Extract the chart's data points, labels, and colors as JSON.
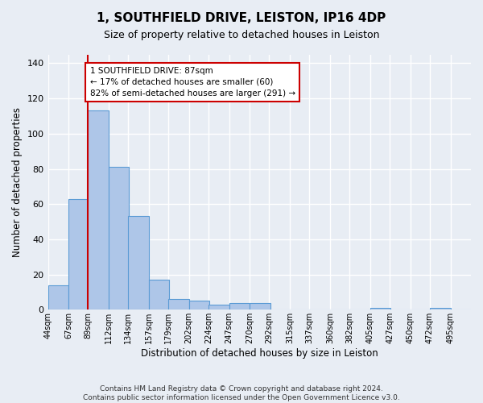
{
  "title": "1, SOUTHFIELD DRIVE, LEISTON, IP16 4DP",
  "subtitle": "Size of property relative to detached houses in Leiston",
  "xlabel": "Distribution of detached houses by size in Leiston",
  "ylabel": "Number of detached properties",
  "bar_labels": [
    "44sqm",
    "67sqm",
    "89sqm",
    "112sqm",
    "134sqm",
    "157sqm",
    "179sqm",
    "202sqm",
    "224sqm",
    "247sqm",
    "270sqm",
    "292sqm",
    "315sqm",
    "337sqm",
    "360sqm",
    "382sqm",
    "405sqm",
    "427sqm",
    "450sqm",
    "472sqm",
    "495sqm"
  ],
  "bar_values": [
    14,
    63,
    113,
    81,
    53,
    17,
    6,
    5,
    3,
    4,
    4,
    0,
    0,
    0,
    0,
    0,
    1,
    0,
    0,
    1,
    0
  ],
  "bar_color": "#aec6e8",
  "bar_edge_color": "#5b9bd5",
  "background_color": "#e8edf4",
  "grid_color": "#ffffff",
  "red_line_x_label": "89sqm",
  "annotation_text": "1 SOUTHFIELD DRIVE: 87sqm\n← 17% of detached houses are smaller (60)\n82% of semi-detached houses are larger (291) →",
  "annotation_box_color": "#ffffff",
  "annotation_box_edge": "#cc0000",
  "ylim": [
    0,
    145
  ],
  "yticks": [
    0,
    20,
    40,
    60,
    80,
    100,
    120,
    140
  ],
  "footer": "Contains HM Land Registry data © Crown copyright and database right 2024.\nContains public sector information licensed under the Open Government Licence v3.0.",
  "bin_width": 23
}
